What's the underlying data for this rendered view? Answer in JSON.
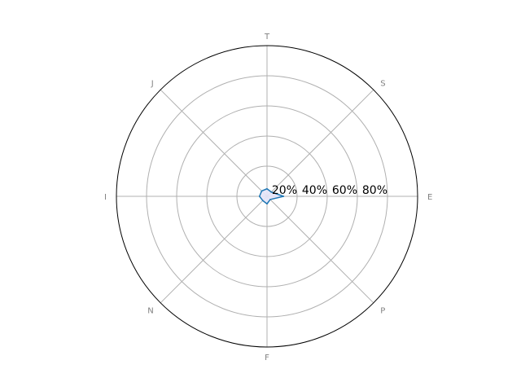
{
  "chart_data": {
    "type": "radar",
    "title": "",
    "categories": [
      "E",
      "S",
      "T",
      "J",
      "I",
      "N",
      "F",
      "P"
    ],
    "series": [
      {
        "values": [
          11,
          4,
          5,
          5,
          5,
          4,
          5,
          3
        ]
      }
    ],
    "rlim": [
      0,
      100
    ],
    "rticks": [
      20,
      40,
      60,
      80
    ],
    "rtick_labels": [
      "20%",
      "40%",
      "60%",
      "80%"
    ],
    "grid": true,
    "colors": {
      "line": "#1f77b4",
      "fill": "#e6e6fa",
      "grid": "#b0b0b0",
      "frame": "#000000",
      "axis_label": "#808080"
    }
  }
}
